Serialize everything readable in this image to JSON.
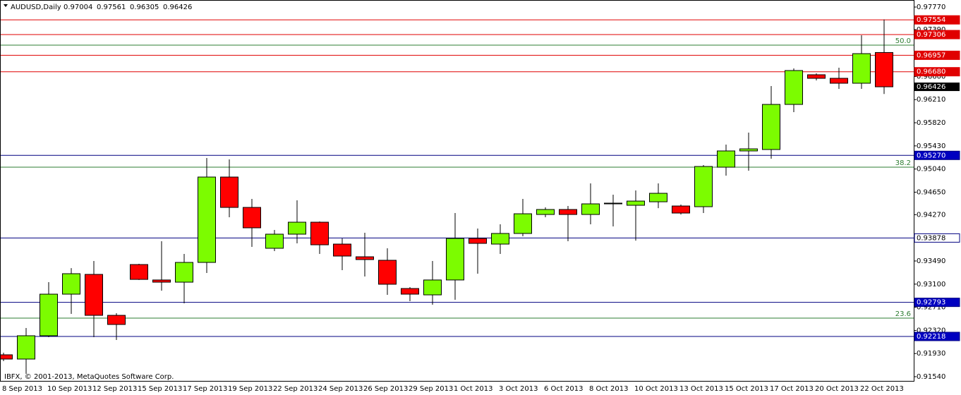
{
  "chart_data": {
    "type": "candlestick",
    "title": "AUDUSD,Daily",
    "ohlc_text": [
      "0.97004",
      "0.97561",
      "0.96305",
      "0.96426"
    ],
    "footer": "IBFX, © 2001-2013, MetaQuotes Software Corp.",
    "categories": [
      "8 Sep 2013",
      null,
      "10 Sep 2013",
      null,
      "12 Sep 2013",
      null,
      "15 Sep 2013",
      null,
      "17 Sep 2013",
      null,
      "19 Sep 2013",
      null,
      "22 Sep 2013",
      null,
      "24 Sep 2013",
      null,
      "26 Sep 2013",
      null,
      "29 Sep 2013",
      null,
      "1 Oct 2013",
      null,
      "3 Oct 2013",
      null,
      "6 Oct 2013",
      null,
      "8 Oct 2013",
      null,
      "10 Oct 2013",
      null,
      "13 Oct 2013",
      null,
      "15 Oct 2013",
      null,
      "17 Oct 2013",
      null,
      "20 Oct 2013",
      null,
      "22 Oct 2013",
      null
    ],
    "open": [
      0.91909,
      0.91837,
      0.9223,
      0.92931,
      0.93264,
      0.92574,
      0.9343,
      0.9317,
      0.93133,
      0.93466,
      0.94905,
      0.94393,
      0.93704,
      0.93942,
      0.94144,
      0.93775,
      0.93561,
      0.93502,
      0.93026,
      0.92919,
      0.9317,
      0.9387,
      0.93775,
      0.93954,
      0.94274,
      0.94358,
      0.94274,
      0.94453,
      0.94429,
      0.94488,
      0.94417,
      0.94405,
      0.95071,
      0.95345,
      0.95369,
      0.96129,
      0.96629,
      0.96569,
      0.96486,
      0.97004
    ],
    "high": [
      0.91945,
      0.92361,
      0.93133,
      0.9337,
      0.9349,
      0.9261,
      0.93442,
      0.93823,
      0.93609,
      0.95226,
      0.95202,
      0.94536,
      0.94013,
      0.94512,
      0.94156,
      0.9387,
      0.93965,
      0.93704,
      0.9305,
      0.9349,
      0.94298,
      0.94037,
      0.94108,
      0.94536,
      0.94393,
      0.94417,
      0.94798,
      0.94608,
      0.94679,
      0.94798,
      0.94441,
      0.95107,
      0.95452,
      0.95654,
      0.96438,
      0.96736,
      0.96653,
      0.96748,
      0.97294,
      0.97561
    ],
    "low": [
      0.91802,
      0.91588,
      0.92206,
      0.92598,
      0.92206,
      0.92159,
      0.9317,
      0.9299,
      0.92777,
      0.93288,
      0.94227,
      0.93728,
      0.93656,
      0.93787,
      0.93609,
      0.93335,
      0.93228,
      0.92919,
      0.92812,
      0.92753,
      0.92836,
      0.93276,
      0.93609,
      0.93906,
      0.94227,
      0.93823,
      0.94108,
      0.94073,
      0.93834,
      0.94381,
      0.94274,
      0.94298,
      0.94928,
      0.95012,
      0.95214,
      0.95999,
      0.96533,
      0.96391,
      0.96391,
      0.96305
    ],
    "close": [
      0.91837,
      0.9223,
      0.92931,
      0.93276,
      0.92574,
      0.9242,
      0.9318,
      0.93133,
      0.93466,
      0.94905,
      0.94393,
      0.94049,
      0.93942,
      0.94144,
      0.93763,
      0.93573,
      0.93514,
      0.93098,
      0.92931,
      0.9317,
      0.9387,
      0.93787,
      0.93954,
      0.94286,
      0.94358,
      0.94274,
      0.94453,
      0.94465,
      0.945,
      0.94631,
      0.94298,
      0.95083,
      0.95345,
      0.9538,
      0.96129,
      0.967,
      0.96569,
      0.96486,
      0.96985,
      0.96426
    ],
    "up_color": "#7cfc00",
    "down_color": "#ff0000",
    "ylim": [
      0.91469,
      0.97889
    ],
    "yticks": [
      {
        "value": 0.9777,
        "label": "0.97770"
      },
      {
        "value": 0.9739,
        "label": "0.97390"
      },
      {
        "value": 0.966,
        "label": "0.96600"
      },
      {
        "value": 0.9621,
        "label": "0.96210"
      },
      {
        "value": 0.9582,
        "label": "0.95820"
      },
      {
        "value": 0.9543,
        "label": "0.95430"
      },
      {
        "value": 0.9504,
        "label": "0.95040"
      },
      {
        "value": 0.9465,
        "label": "0.94650"
      },
      {
        "value": 0.9427,
        "label": "0.94270"
      },
      {
        "value": 0.9349,
        "label": "0.93490"
      },
      {
        "value": 0.931,
        "label": "0.93100"
      },
      {
        "value": 0.9271,
        "label": "0.92710"
      },
      {
        "value": 0.9232,
        "label": "0.92320"
      },
      {
        "value": 0.9193,
        "label": "0.91930"
      },
      {
        "value": 0.9154,
        "label": "0.91540"
      }
    ],
    "grid": false,
    "levels": [
      {
        "value": 0.97554,
        "label": "0.97554",
        "color": "#e00000",
        "label_bg": "#e00000",
        "label_color": "#ffffff"
      },
      {
        "value": 0.97306,
        "label": "0.97306",
        "color": "#e00000",
        "label_bg": "#e00000",
        "label_color": "#ffffff"
      },
      {
        "value": 0.96957,
        "label": "0.96957",
        "color": "#e00000",
        "label_bg": "#e00000",
        "label_color": "#ffffff"
      },
      {
        "value": 0.9668,
        "label": "0.96680",
        "color": "#e00000",
        "label_bg": "#e00000",
        "label_color": "#ffffff"
      },
      {
        "value": 0.9527,
        "label": "0.95270",
        "color": "#000080",
        "label_bg": "#0000c0",
        "label_color": "#ffffff"
      },
      {
        "value": 0.93878,
        "label": "0.93878",
        "color": "#000080",
        "label_bg": "#ffffff",
        "label_color": "#000000"
      },
      {
        "value": 0.92793,
        "label": "0.92793",
        "color": "#000080",
        "label_bg": "#0000c0",
        "label_color": "#ffffff"
      },
      {
        "value": 0.92218,
        "label": "0.92218",
        "color": "#000080",
        "label_bg": "#0000c0",
        "label_color": "#ffffff"
      }
    ],
    "fib_levels": [
      {
        "value": 0.97128,
        "label": "50.0"
      },
      {
        "value": 0.95071,
        "label": "38.2"
      },
      {
        "value": 0.92527,
        "label": "23.6"
      }
    ],
    "fib_color": "#2e7d32",
    "price_label": {
      "value": 0.96426,
      "label": "0.96426"
    }
  }
}
